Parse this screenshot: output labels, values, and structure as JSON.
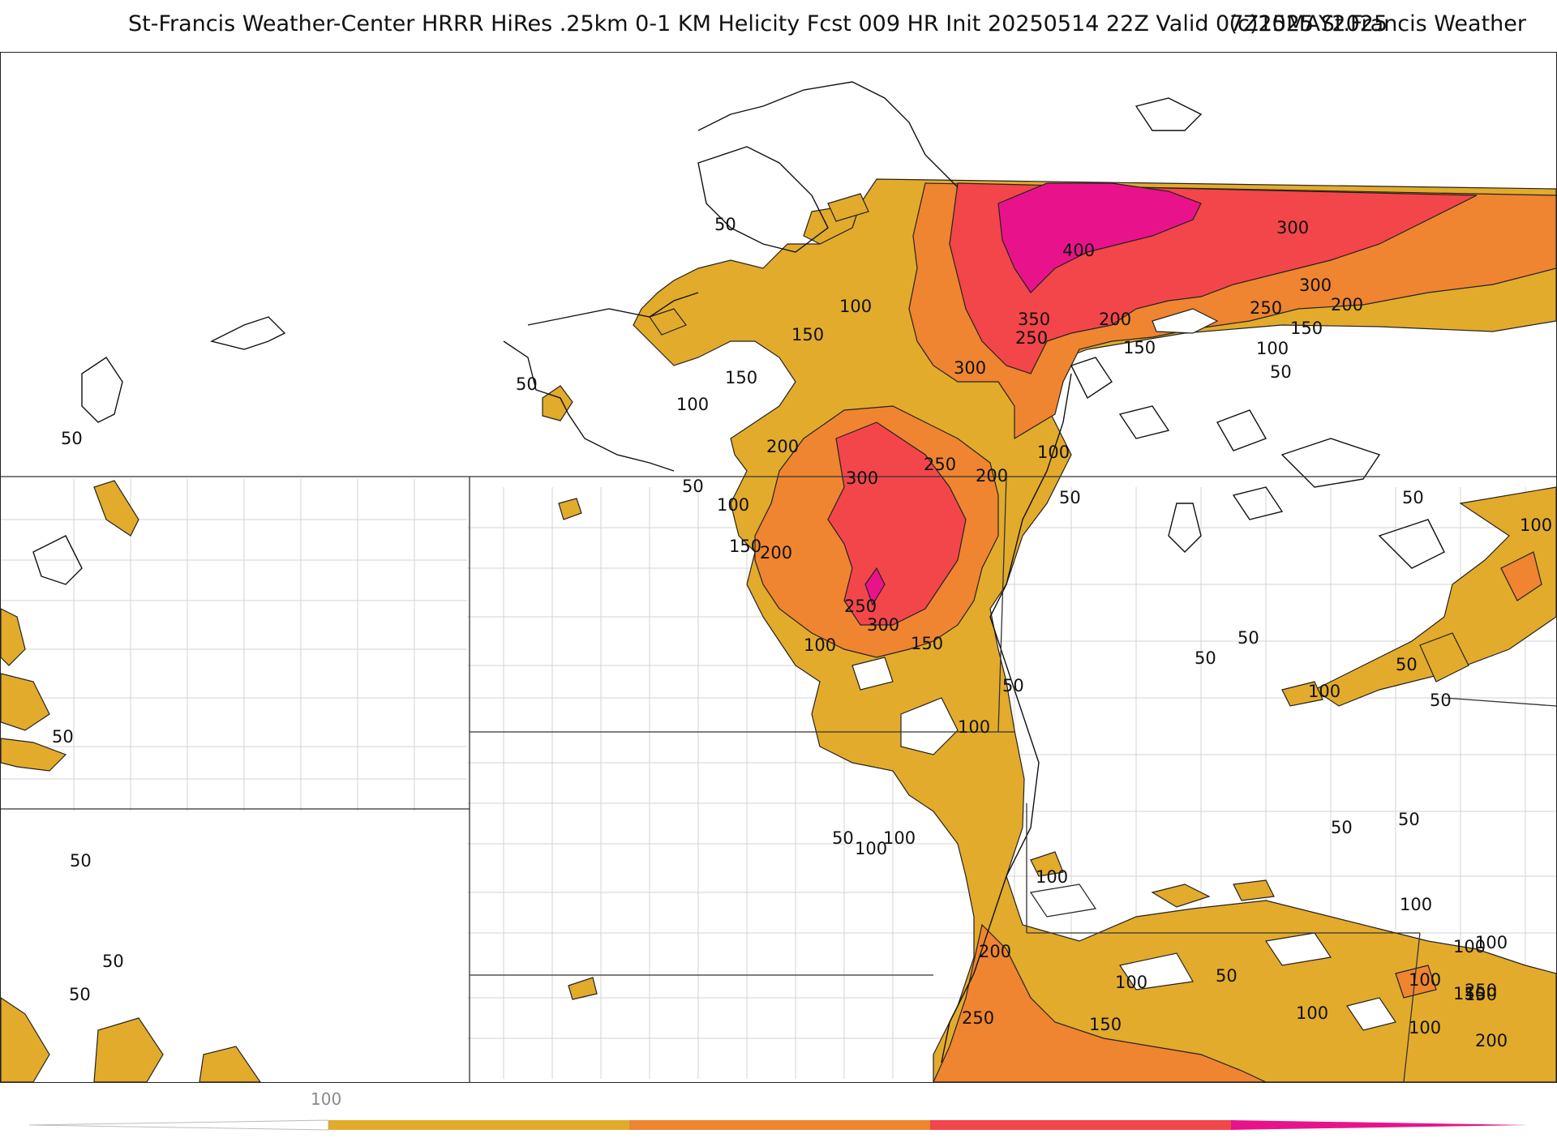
{
  "title": {
    "left": "St-Francis Weather-Center HRRR HiRes .25km 0-1 KM Helicity Fcst 009 HR Init 20250514 22Z  Valid 07Z15MAY2025",
    "right": "(c)2025 St.Francis Weather"
  },
  "legend": {
    "tick_label": "100",
    "levels": [
      {
        "min": 100,
        "max": 200,
        "color": "#e3ab2c"
      },
      {
        "min": 200,
        "max": 300,
        "color": "#ef8530"
      },
      {
        "min": 300,
        "max": 400,
        "color": "#f2464a"
      },
      {
        "min": 400,
        "max": 500,
        "color": "#e8138a"
      }
    ]
  },
  "contour_labels": [
    "50",
    "50",
    "50",
    "50",
    "50",
    "50",
    "50",
    "50",
    "50",
    "50",
    "50",
    "50",
    "50",
    "50",
    "50",
    "50",
    "50",
    "50",
    "50",
    "50",
    "100",
    "100",
    "100",
    "100",
    "100",
    "100",
    "100",
    "100",
    "100",
    "100",
    "100",
    "100",
    "100",
    "100",
    "100",
    "100",
    "100",
    "100",
    "100",
    "150",
    "150",
    "150",
    "150",
    "150",
    "150",
    "150",
    "150",
    "150",
    "200",
    "200",
    "200",
    "200",
    "200",
    "200",
    "200",
    "250",
    "250",
    "250",
    "250",
    "250",
    "250",
    "300",
    "300",
    "300",
    "300",
    "300",
    "350",
    "400"
  ],
  "colors": {
    "level1": "#e3ab2c",
    "level2": "#ef8530",
    "level3": "#f2464a",
    "level4": "#e8138a",
    "contour": "#111111",
    "state_line": "#333333",
    "county_line": "#d0d0d0"
  }
}
